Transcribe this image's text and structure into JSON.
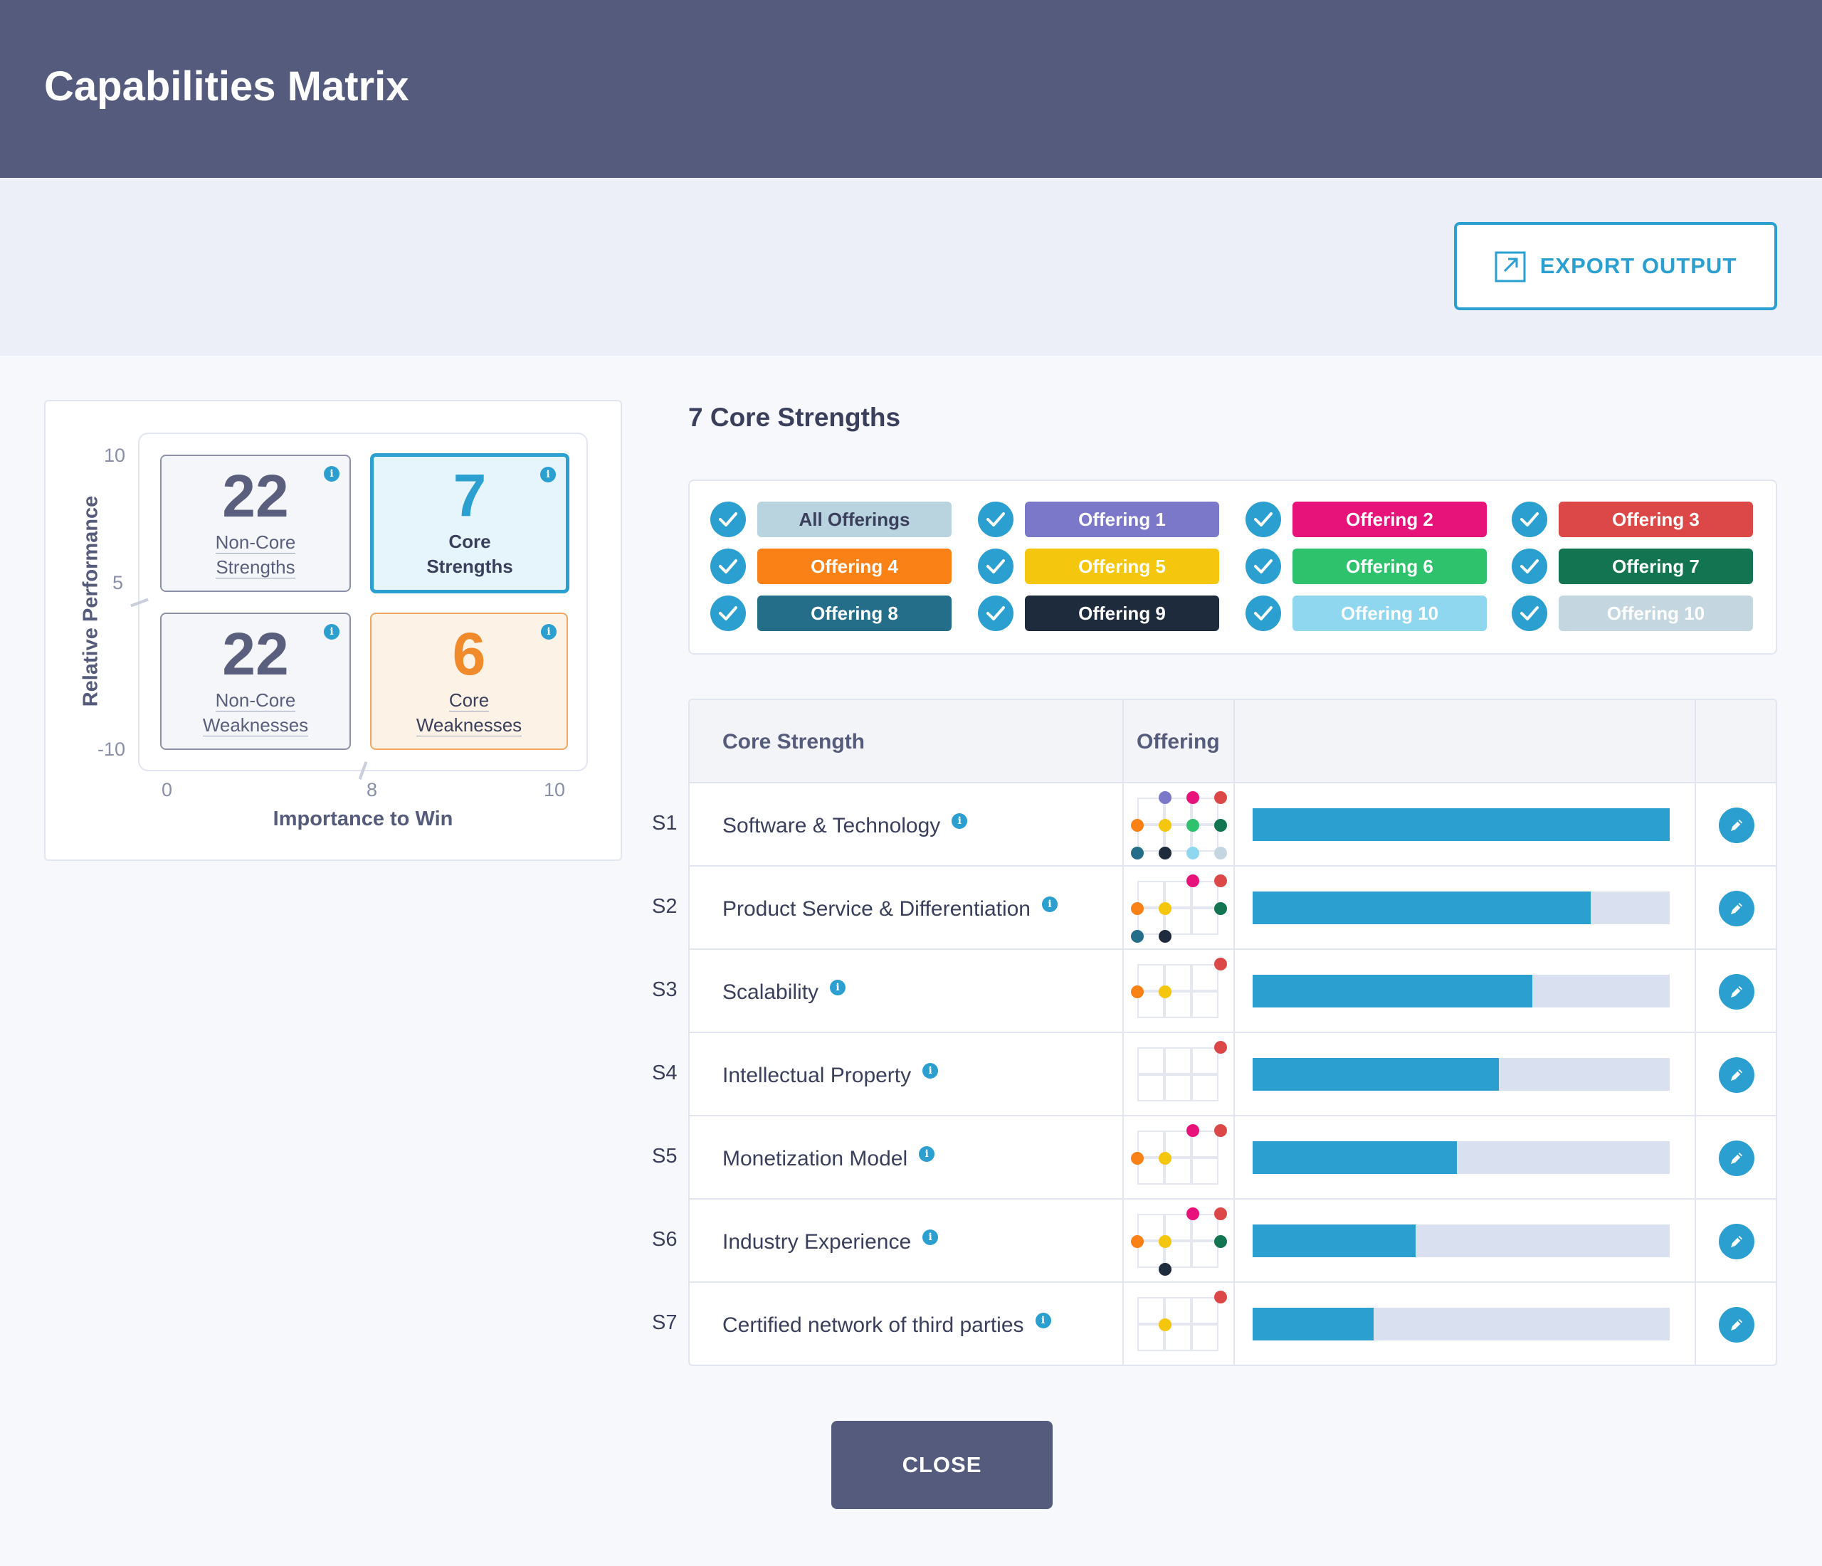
{
  "header": {
    "title": "Capabilities Matrix"
  },
  "toolbar": {
    "export_label": "EXPORT OUTPUT"
  },
  "matrix": {
    "y_axis_label": "Relative Performance",
    "x_axis_label": "Importance to Win",
    "y_ticks": [
      "10",
      "5",
      "-10"
    ],
    "x_ticks": [
      "0",
      "8",
      "10"
    ],
    "quadrants": {
      "non_core_strengths": {
        "count": "22",
        "line1": "Non-Core",
        "line2": "Strengths"
      },
      "core_strengths": {
        "count": "7",
        "line1": "Core",
        "line2": "Strengths"
      },
      "non_core_weaknesses": {
        "count": "22",
        "line1": "Non-Core",
        "line2": "Weaknesses"
      },
      "core_weaknesses": {
        "count": "6",
        "line1": "Core",
        "line2": "Weaknesses"
      }
    }
  },
  "section_title": "7 Core Strengths",
  "filters": [
    {
      "label": "All Offerings",
      "color": "#b9d3df",
      "text_color": "#3a3f5c",
      "checked": true
    },
    {
      "label": "Offering 1",
      "color": "#7b78c9",
      "checked": true
    },
    {
      "label": "Offering 2",
      "color": "#e8137a",
      "checked": true
    },
    {
      "label": "Offering 3",
      "color": "#dc4848",
      "checked": true
    },
    {
      "label": "Offering 4",
      "color": "#f98115",
      "checked": true
    },
    {
      "label": "Offering 5",
      "color": "#f5c60e",
      "checked": true
    },
    {
      "label": "Offering 6",
      "color": "#2fc26d",
      "checked": true
    },
    {
      "label": "Offering 7",
      "color": "#127451",
      "checked": true
    },
    {
      "label": "Offering 8",
      "color": "#246e8a",
      "checked": true
    },
    {
      "label": "Offering 9",
      "color": "#1d2b3d",
      "checked": true
    },
    {
      "label": "Offering 10",
      "color": "#8fd6ef",
      "checked": true
    },
    {
      "label": "Offering 10",
      "color": "#c4d7e1",
      "checked": true
    }
  ],
  "table": {
    "headers": {
      "core_strength": "Core Strength",
      "offering": "Offering"
    },
    "rows": [
      {
        "id": "S1",
        "name": "Software & Technology",
        "score": 1.0,
        "offerings": [
          "Offering 1",
          "Offering 2",
          "Offering 3",
          "Offering 4",
          "Offering 5",
          "Offering 6",
          "Offering 7",
          "Offering 8",
          "Offering 9",
          "Offering 10",
          "Offering 10"
        ]
      },
      {
        "id": "S2",
        "name": "Product Service & Differentiation",
        "score": 0.81,
        "offerings": [
          "Offering 2",
          "Offering 3",
          "Offering 4",
          "Offering 5",
          "Offering 7",
          "Offering 8",
          "Offering 9"
        ]
      },
      {
        "id": "S3",
        "name": "Scalability",
        "score": 0.67,
        "offerings": [
          "Offering 3",
          "Offering 4",
          "Offering 5"
        ]
      },
      {
        "id": "S4",
        "name": "Intellectual Property",
        "score": 0.59,
        "offerings": [
          "Offering 3"
        ]
      },
      {
        "id": "S5",
        "name": "Monetization Model",
        "score": 0.49,
        "offerings": [
          "Offering 2",
          "Offering 3",
          "Offering 4",
          "Offering 5"
        ]
      },
      {
        "id": "S6",
        "name": "Industry Experience",
        "score": 0.39,
        "offerings": [
          "Offering 2",
          "Offering 3",
          "Offering 4",
          "Offering 5",
          "Offering 7",
          "Offering 9"
        ]
      },
      {
        "id": "S7",
        "name": "Certified network of third parties",
        "score": 0.29,
        "offerings": [
          "Offering 3",
          "Offering 5"
        ]
      }
    ]
  },
  "close_label": "CLOSE"
}
